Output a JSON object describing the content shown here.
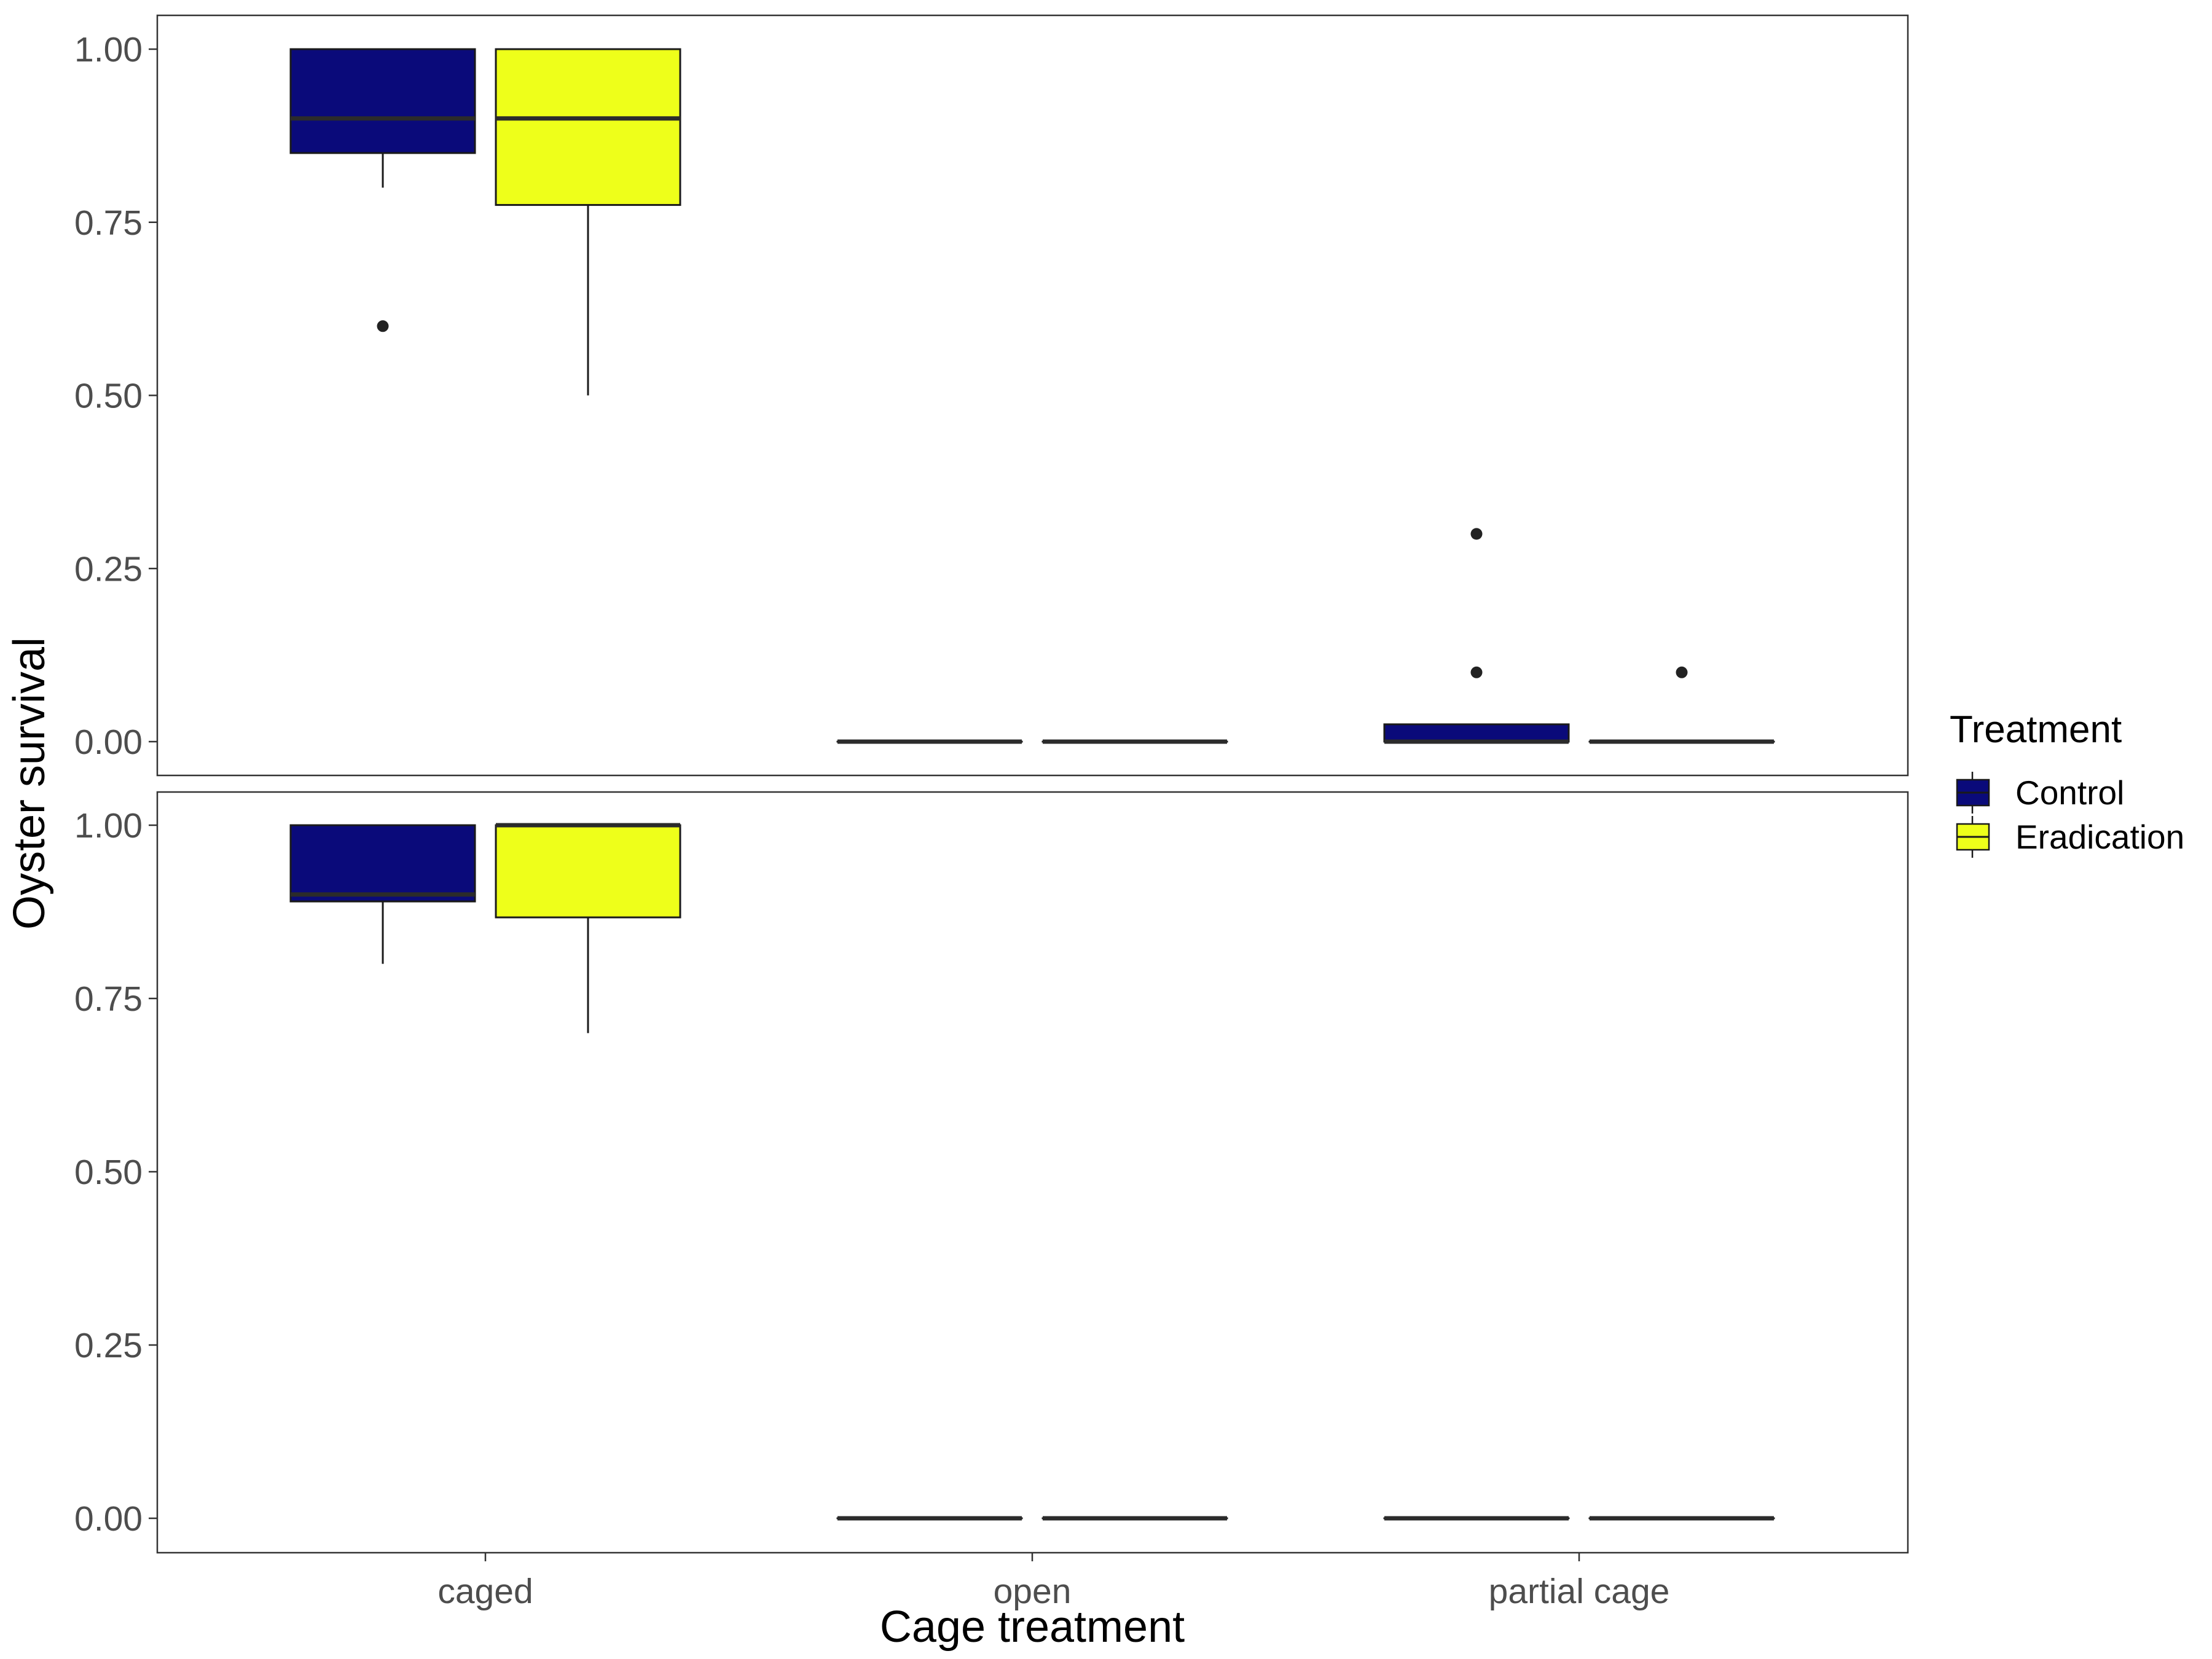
{
  "chart_data": {
    "type": "boxplot",
    "xlabel": "Cage treatment",
    "ylabel": "Oyster survival",
    "categories": [
      "caged",
      "open",
      "partial cage"
    ],
    "ylim": [
      -0.05,
      1.05
    ],
    "yticks": [
      "0.00",
      "0.25",
      "0.50",
      "0.75",
      "1.00"
    ],
    "legend": {
      "title": "Treatment",
      "position": "right",
      "entries": [
        {
          "name": "Control",
          "color": "#0a0a7a"
        },
        {
          "name": "Eradication",
          "color": "#eeff1a"
        }
      ]
    },
    "grid": false,
    "panels": [
      {
        "boxes": [
          {
            "category": "caged",
            "series": "Control",
            "min": 0.8,
            "q1": 0.85,
            "median": 0.9,
            "q3": 1.0,
            "max": 1.0,
            "outliers": [
              0.6
            ]
          },
          {
            "category": "caged",
            "series": "Eradication",
            "min": 0.5,
            "q1": 0.775,
            "median": 0.9,
            "q3": 1.0,
            "max": 1.0,
            "outliers": []
          },
          {
            "category": "open",
            "series": "Control",
            "min": 0.0,
            "q1": 0.0,
            "median": 0.0,
            "q3": 0.0,
            "max": 0.0,
            "outliers": []
          },
          {
            "category": "open",
            "series": "Eradication",
            "min": 0.0,
            "q1": 0.0,
            "median": 0.0,
            "q3": 0.0,
            "max": 0.0,
            "outliers": []
          },
          {
            "category": "partial cage",
            "series": "Control",
            "min": 0.0,
            "q1": 0.0,
            "median": 0.0,
            "q3": 0.025,
            "max": 0.025,
            "outliers": [
              0.1,
              0.3
            ]
          },
          {
            "category": "partial cage",
            "series": "Eradication",
            "min": 0.0,
            "q1": 0.0,
            "median": 0.0,
            "q3": 0.0,
            "max": 0.0,
            "outliers": [
              0.1
            ]
          }
        ]
      },
      {
        "boxes": [
          {
            "category": "caged",
            "series": "Control",
            "min": 0.8,
            "q1": 0.89,
            "median": 0.9,
            "q3": 1.0,
            "max": 1.0,
            "outliers": []
          },
          {
            "category": "caged",
            "series": "Eradication",
            "min": 0.7,
            "q1": 0.867,
            "median": 1.0,
            "q3": 1.0,
            "max": 1.0,
            "outliers": []
          },
          {
            "category": "open",
            "series": "Control",
            "min": 0.0,
            "q1": 0.0,
            "median": 0.0,
            "q3": 0.0,
            "max": 0.0,
            "outliers": []
          },
          {
            "category": "open",
            "series": "Eradication",
            "min": 0.0,
            "q1": 0.0,
            "median": 0.0,
            "q3": 0.0,
            "max": 0.0,
            "outliers": []
          },
          {
            "category": "partial cage",
            "series": "Control",
            "min": 0.0,
            "q1": 0.0,
            "median": 0.0,
            "q3": 0.0,
            "max": 0.0,
            "outliers": []
          },
          {
            "category": "partial cage",
            "series": "Eradication",
            "min": 0.0,
            "q1": 0.0,
            "median": 0.0,
            "q3": 0.0,
            "max": 0.0,
            "outliers": []
          }
        ]
      }
    ]
  }
}
